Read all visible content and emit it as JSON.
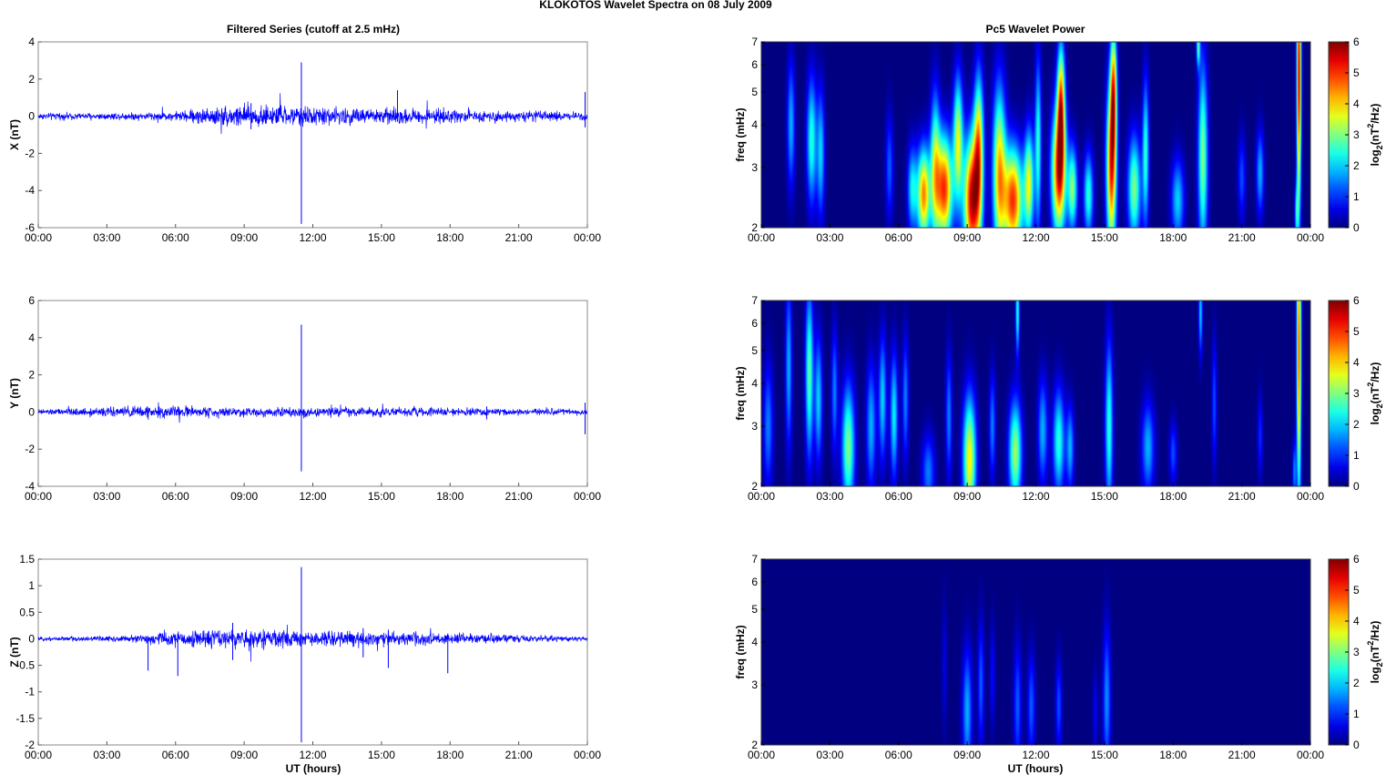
{
  "figure": {
    "suptitle": "KLOKOTOS Wavelet Spectra on 08 July      2009",
    "left_title": "Filtered Series (cutoff at 2.5 mHz)",
    "right_title": "Pc5 Wavelet Power",
    "xlabel": "UT (hours)",
    "freq_ylabel": "freq (mHz)",
    "colorbar_label": "log2(nT2/Hz)"
  },
  "colors": {
    "trace": "#0000ff",
    "background": "#00008f",
    "colormap": "jet"
  },
  "chart_data": [
    {
      "type": "line",
      "component": "X",
      "ylabel": "X (nT)",
      "ylim": [
        -6,
        4
      ],
      "yticks": [
        4,
        2,
        0,
        -2,
        -4,
        -6
      ],
      "xlim_hours": [
        0,
        24
      ],
      "xticks": [
        "00:00",
        "03:00",
        "06:00",
        "09:00",
        "12:00",
        "15:00",
        "18:00",
        "21:00",
        "00:00"
      ],
      "noise_profile": [
        [
          0,
          0.15
        ],
        [
          3,
          0.15
        ],
        [
          6,
          0.2
        ],
        [
          7,
          0.35
        ],
        [
          9,
          0.55
        ],
        [
          10,
          0.45
        ],
        [
          13,
          0.4
        ],
        [
          16,
          0.35
        ],
        [
          19,
          0.25
        ],
        [
          24,
          0.2
        ]
      ],
      "spikes": [
        [
          11.5,
          2.9,
          -5.8
        ],
        [
          15.7,
          1.4,
          -0.3
        ],
        [
          23.9,
          1.3,
          -0.6
        ],
        [
          9.3,
          0.7,
          -0.7
        ]
      ]
    },
    {
      "type": "line",
      "component": "Y",
      "ylabel": "Y (nT)",
      "ylim": [
        -4,
        6
      ],
      "yticks": [
        6,
        4,
        2,
        0,
        -2,
        -4
      ],
      "xlim_hours": [
        0,
        24
      ],
      "xticks": [
        "00:00",
        "03:00",
        "06:00",
        "09:00",
        "12:00",
        "15:00",
        "18:00",
        "21:00",
        "00:00"
      ],
      "noise_profile": [
        [
          0,
          0.12
        ],
        [
          3,
          0.2
        ],
        [
          5,
          0.3
        ],
        [
          8,
          0.22
        ],
        [
          12,
          0.2
        ],
        [
          16,
          0.2
        ],
        [
          20,
          0.15
        ],
        [
          24,
          0.15
        ]
      ],
      "spikes": [
        [
          11.5,
          4.7,
          -3.2
        ],
        [
          23.9,
          0.5,
          -1.2
        ],
        [
          19.6,
          0.3,
          -0.4
        ]
      ]
    },
    {
      "type": "line",
      "component": "Z",
      "ylabel": "Z (nT)",
      "ylim": [
        -2,
        1.5
      ],
      "yticks": [
        1.5,
        1,
        0.5,
        0,
        -0.5,
        -1,
        -1.5,
        -2
      ],
      "xlim_hours": [
        0,
        24
      ],
      "xticks": [
        "00:00",
        "03:00",
        "06:00",
        "09:00",
        "12:00",
        "15:00",
        "18:00",
        "21:00",
        "00:00"
      ],
      "noise_profile": [
        [
          0,
          0.03
        ],
        [
          4,
          0.05
        ],
        [
          6,
          0.12
        ],
        [
          9,
          0.15
        ],
        [
          12,
          0.12
        ],
        [
          15,
          0.12
        ],
        [
          18,
          0.08
        ],
        [
          20,
          0.07
        ],
        [
          24,
          0.03
        ]
      ],
      "spikes": [
        [
          11.5,
          1.35,
          -1.95
        ],
        [
          4.8,
          0.05,
          -0.6
        ],
        [
          6.1,
          0.1,
          -0.7
        ],
        [
          15.3,
          0.15,
          -0.55
        ],
        [
          17.9,
          0.1,
          -0.65
        ],
        [
          8.5,
          0.3,
          -0.4
        ],
        [
          14.2,
          0.2,
          -0.35
        ]
      ]
    },
    {
      "type": "heatmap",
      "component": "X",
      "ylabel": "freq (mHz)",
      "yscale": "log",
      "ylim_mHz": [
        2,
        7
      ],
      "yticks": [
        2,
        3,
        4,
        5,
        6,
        7
      ],
      "xlim_hours": [
        0,
        24
      ],
      "xticks": [
        "00:00",
        "03:00",
        "06:00",
        "09:00",
        "12:00",
        "15:00",
        "18:00",
        "21:00",
        "00:00"
      ],
      "clim": [
        0,
        6
      ],
      "cbar_ticks": [
        0,
        1,
        2,
        3,
        4,
        5,
        6
      ],
      "features": [
        [
          1.3,
          4.0,
          0.12,
          0.3,
          1.8
        ],
        [
          2.2,
          3.6,
          0.15,
          0.3,
          2.5
        ],
        [
          2.6,
          3.3,
          0.12,
          0.3,
          2.0
        ],
        [
          5.6,
          3.0,
          0.12,
          0.25,
          1.3
        ],
        [
          6.6,
          2.6,
          0.15,
          0.2,
          2.2
        ],
        [
          7.1,
          2.5,
          0.2,
          0.22,
          4.5
        ],
        [
          7.6,
          3.0,
          0.15,
          0.35,
          3.0
        ],
        [
          8.0,
          2.6,
          0.25,
          0.25,
          5.0
        ],
        [
          8.6,
          3.6,
          0.15,
          0.3,
          3.5
        ],
        [
          9.2,
          2.4,
          0.25,
          0.3,
          5.5
        ],
        [
          9.5,
          3.4,
          0.15,
          0.35,
          4.0
        ],
        [
          10.4,
          2.9,
          0.2,
          0.4,
          4.0
        ],
        [
          11.0,
          2.4,
          0.3,
          0.25,
          5.0
        ],
        [
          11.7,
          2.7,
          0.15,
          0.25,
          3.5
        ],
        [
          12.1,
          3.5,
          0.1,
          0.4,
          2.5
        ],
        [
          13.0,
          2.9,
          0.22,
          0.3,
          5.0
        ],
        [
          13.1,
          4.5,
          0.12,
          0.3,
          4.5
        ],
        [
          13.6,
          2.6,
          0.15,
          0.2,
          3.0
        ],
        [
          14.3,
          2.5,
          0.15,
          0.2,
          2.5
        ],
        [
          15.3,
          3.0,
          0.15,
          0.4,
          5.0
        ],
        [
          15.4,
          5.0,
          0.1,
          0.3,
          4.0
        ],
        [
          16.3,
          2.6,
          0.2,
          0.25,
          3.0
        ],
        [
          16.8,
          3.3,
          0.1,
          0.35,
          2.5
        ],
        [
          18.2,
          2.4,
          0.2,
          0.2,
          2.0
        ],
        [
          19.3,
          3.2,
          0.15,
          0.45,
          3.0
        ],
        [
          19.1,
          6.8,
          0.06,
          0.1,
          2.5
        ],
        [
          21.0,
          2.8,
          0.12,
          0.2,
          1.2
        ],
        [
          21.8,
          2.9,
          0.12,
          0.2,
          1.8
        ],
        [
          23.5,
          5.5,
          0.07,
          0.6,
          5.5
        ],
        [
          23.4,
          2.2,
          0.06,
          0.15,
          2.0
        ]
      ]
    },
    {
      "type": "heatmap",
      "component": "Y",
      "ylabel": "freq (mHz)",
      "yscale": "log",
      "ylim_mHz": [
        2,
        7
      ],
      "yticks": [
        2,
        3,
        4,
        5,
        6,
        7
      ],
      "xlim_hours": [
        0,
        24
      ],
      "xticks": [
        "00:00",
        "03:00",
        "06:00",
        "09:00",
        "12:00",
        "15:00",
        "18:00",
        "21:00",
        "00:00"
      ],
      "clim": [
        0,
        6
      ],
      "cbar_ticks": [
        0,
        1,
        2,
        3,
        4,
        5,
        6
      ],
      "features": [
        [
          0.3,
          3.0,
          0.15,
          0.3,
          1.5
        ],
        [
          1.2,
          4.5,
          0.1,
          0.4,
          1.8
        ],
        [
          2.1,
          4.3,
          0.12,
          0.4,
          2.8
        ],
        [
          2.5,
          3.6,
          0.12,
          0.3,
          2.0
        ],
        [
          3.2,
          3.8,
          0.1,
          0.3,
          1.5
        ],
        [
          3.8,
          2.6,
          0.2,
          0.3,
          3.0
        ],
        [
          4.8,
          3.0,
          0.15,
          0.3,
          1.8
        ],
        [
          5.3,
          3.6,
          0.12,
          0.3,
          2.0
        ],
        [
          5.8,
          3.2,
          0.12,
          0.3,
          2.2
        ],
        [
          6.3,
          3.6,
          0.1,
          0.3,
          1.5
        ],
        [
          7.3,
          2.2,
          0.2,
          0.18,
          1.5
        ],
        [
          8.2,
          3.2,
          0.1,
          0.3,
          1.5
        ],
        [
          9.1,
          2.4,
          0.2,
          0.3,
          3.8
        ],
        [
          10.1,
          3.0,
          0.1,
          0.25,
          1.5
        ],
        [
          11.1,
          2.5,
          0.2,
          0.25,
          3.2
        ],
        [
          11.2,
          6.5,
          0.06,
          0.2,
          2.5
        ],
        [
          12.3,
          2.9,
          0.15,
          0.25,
          1.8
        ],
        [
          13.0,
          2.7,
          0.18,
          0.25,
          2.5
        ],
        [
          13.5,
          2.6,
          0.12,
          0.2,
          1.8
        ],
        [
          15.2,
          3.0,
          0.12,
          0.4,
          2.5
        ],
        [
          16.9,
          2.6,
          0.2,
          0.22,
          1.8
        ],
        [
          18.0,
          2.5,
          0.12,
          0.15,
          1.2
        ],
        [
          19.2,
          6.5,
          0.06,
          0.2,
          2.0
        ],
        [
          19.8,
          3.5,
          0.08,
          0.3,
          1.2
        ],
        [
          21.8,
          2.8,
          0.08,
          0.2,
          1.0
        ],
        [
          23.5,
          5.0,
          0.07,
          0.7,
          4.8
        ],
        [
          23.3,
          2.2,
          0.06,
          0.15,
          1.5
        ]
      ]
    },
    {
      "type": "heatmap",
      "component": "Z",
      "ylabel": "freq (mHz)",
      "yscale": "log",
      "ylim_mHz": [
        2,
        7
      ],
      "yticks": [
        2,
        3,
        4,
        5,
        6,
        7
      ],
      "xlim_hours": [
        0,
        24
      ],
      "xticks": [
        "00:00",
        "03:00",
        "06:00",
        "09:00",
        "12:00",
        "15:00",
        "18:00",
        "21:00",
        "00:00"
      ],
      "clim": [
        0,
        6
      ],
      "cbar_ticks": [
        0,
        1,
        2,
        3,
        4,
        5,
        6
      ],
      "features": [
        [
          8.0,
          3.4,
          0.08,
          0.3,
          0.6
        ],
        [
          9.0,
          2.5,
          0.15,
          0.3,
          1.8
        ],
        [
          9.6,
          3.0,
          0.1,
          0.3,
          1.3
        ],
        [
          10.1,
          3.2,
          0.08,
          0.25,
          0.8
        ],
        [
          11.2,
          2.6,
          0.12,
          0.3,
          1.3
        ],
        [
          11.8,
          2.6,
          0.12,
          0.25,
          1.3
        ],
        [
          13.0,
          2.6,
          0.1,
          0.22,
          1.2
        ],
        [
          14.6,
          2.5,
          0.08,
          0.2,
          0.7
        ],
        [
          15.1,
          2.7,
          0.12,
          0.35,
          1.6
        ]
      ]
    }
  ]
}
